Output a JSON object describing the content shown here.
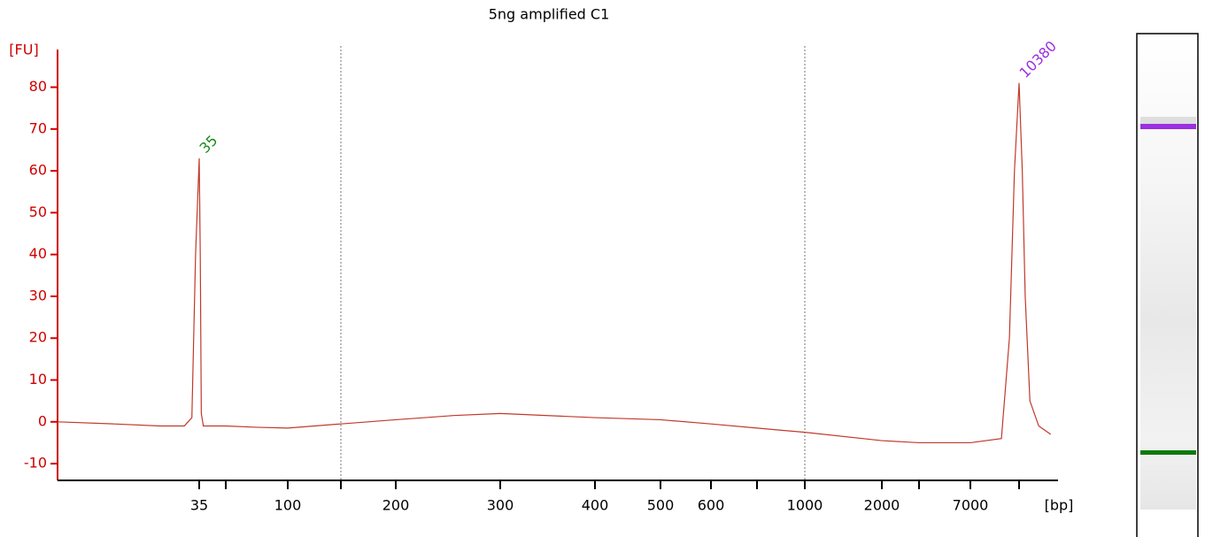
{
  "chart_data": {
    "type": "line",
    "title": "5ng amplified C1",
    "y_label": "[FU]",
    "x_label": "[bp]",
    "color": "#c0392b",
    "axis_color": "#d00000",
    "x": [
      20,
      25,
      30,
      33,
      34,
      34.5,
      35,
      35.5,
      36,
      37,
      45,
      50,
      70,
      100,
      150,
      200,
      250,
      300,
      400,
      500,
      600,
      700,
      1000,
      2000,
      3000,
      7000,
      9000,
      9600,
      10000,
      10380,
      10700,
      11000,
      11500,
      12500,
      14000
    ],
    "values": [
      0,
      -0.5,
      -1,
      -1,
      1,
      40,
      63,
      40,
      2,
      -1,
      -1,
      -1,
      -1.3,
      -1.5,
      -0.5,
      0.5,
      1.5,
      2,
      1,
      0.5,
      -0.5,
      -1.5,
      -2.5,
      -4.5,
      -5,
      -5,
      -4,
      20,
      60,
      81,
      60,
      30,
      5,
      -1,
      -3
    ],
    "xlim": [
      20,
      15000
    ],
    "xticks": [
      35,
      {
        "value": 50,
        "label": null
      },
      100,
      {
        "value": 150,
        "label": null
      },
      200,
      300,
      400,
      500,
      600,
      {
        "value": 700,
        "label": null
      },
      1000,
      2000,
      {
        "value": 3000,
        "label": null
      },
      7000,
      {
        "value": 10380,
        "label": null
      }
    ],
    "ylim": [
      -14,
      89
    ],
    "yticks": [
      -10,
      0,
      10,
      20,
      30,
      40,
      50,
      60,
      70,
      80
    ],
    "markers": [
      150,
      1000
    ],
    "annotations": [
      {
        "text": "35",
        "x": 35,
        "y": 63,
        "color": "#1a8a1a"
      },
      {
        "text": "10380",
        "x": 10380,
        "y": 81,
        "color": "#9b30e0"
      }
    ]
  }
}
